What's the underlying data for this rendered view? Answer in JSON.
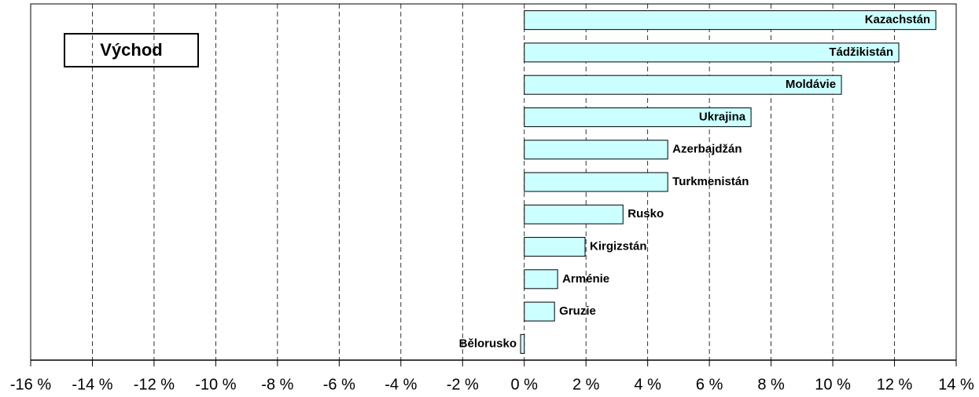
{
  "chart_data": {
    "type": "barh",
    "title": "Východ",
    "categories": [
      "Kazachstán",
      "Tádžikistán",
      "Moldávie",
      "Ukrajina",
      "Azerbajdžán",
      "Turkmenistán",
      "Rusko",
      "Kirgizstán",
      "Arménie",
      "Gruzie",
      "Bělorusko"
    ],
    "values": [
      13.34,
      12.14,
      10.28,
      7.35,
      4.65,
      4.65,
      3.2,
      1.97,
      1.08,
      0.98,
      -0.12
    ],
    "color": "#ccffff",
    "xlim": [
      -16,
      14
    ],
    "xticks": [
      {
        "value": -16,
        "label": "-16 %"
      },
      {
        "value": -14,
        "label": "-14 %"
      },
      {
        "value": -12,
        "label": "-12 %"
      },
      {
        "value": -10,
        "label": "-10 %"
      },
      {
        "value": -8,
        "label": "-8 %"
      },
      {
        "value": -6,
        "label": "-6 %"
      },
      {
        "value": -4,
        "label": "-4 %"
      },
      {
        "value": -2,
        "label": "-2 %"
      },
      {
        "value": 0,
        "label": "0 %"
      },
      {
        "value": 2,
        "label": "2 %"
      },
      {
        "value": 4,
        "label": "4 %"
      },
      {
        "value": 6,
        "label": "6 %"
      },
      {
        "value": 8,
        "label": "8 %"
      },
      {
        "value": 10,
        "label": "10 %"
      },
      {
        "value": 12,
        "label": "12 %"
      },
      {
        "value": 14,
        "label": "14 %"
      }
    ],
    "grid": true
  }
}
